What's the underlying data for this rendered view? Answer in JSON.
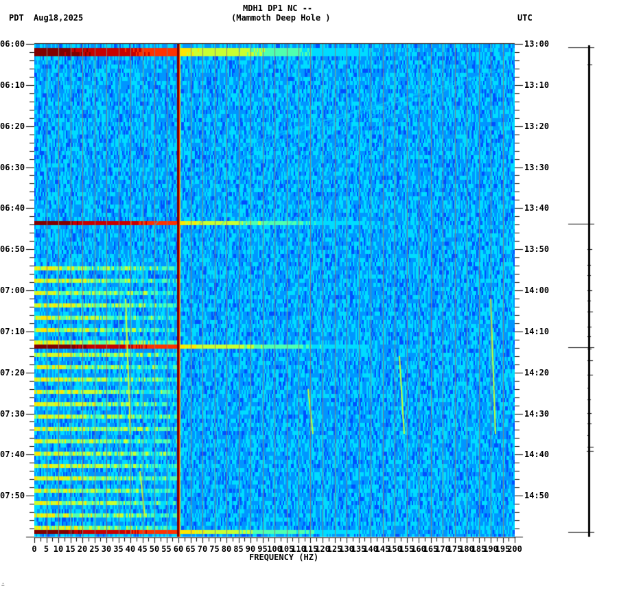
{
  "header": {
    "timezone_left": "PDT",
    "date": "Aug18,2025",
    "station_line1": "MDH1 DP1 NC --",
    "station_line2": "(Mammoth Deep Hole )",
    "timezone_right": "UTC"
  },
  "footer": {
    "corner_mark": "∴"
  },
  "colors": {
    "background": "#ffffff",
    "colormap": [
      "#0000c8",
      "#0050ff",
      "#0096ff",
      "#00dcff",
      "#50ffaf",
      "#c8ff32",
      "#ffe600",
      "#ff9600",
      "#ff3200",
      "#c80000",
      "#800000"
    ],
    "gridline": "#808080",
    "axis": "#000000"
  },
  "chart_data": {
    "type": "heatmap",
    "title": "MDH1 DP1 NC -- (Mammoth Deep Hole )",
    "subtitle": "Aug18,2025",
    "xlabel": "FREQUENCY (HZ)",
    "ylabel_left": "PDT",
    "ylabel_right": "UTC",
    "xlim": [
      0,
      200
    ],
    "x_ticks": [
      0,
      5,
      10,
      15,
      20,
      25,
      30,
      35,
      40,
      45,
      50,
      55,
      60,
      65,
      70,
      75,
      80,
      85,
      90,
      95,
      100,
      105,
      110,
      115,
      120,
      125,
      130,
      135,
      140,
      145,
      150,
      155,
      160,
      165,
      170,
      175,
      180,
      185,
      190,
      195,
      200
    ],
    "y_ticks_left": [
      "06:00",
      "06:10",
      "06:20",
      "06:30",
      "06:40",
      "06:50",
      "07:00",
      "07:10",
      "07:20",
      "07:30",
      "07:40",
      "07:50"
    ],
    "y_ticks_right": [
      "13:00",
      "13:10",
      "13:20",
      "13:30",
      "13:40",
      "13:50",
      "14:00",
      "14:10",
      "14:20",
      "14:30",
      "14:40",
      "14:50"
    ],
    "time_range_minutes": 120,
    "minor_tick_minutes": 2,
    "grid": {
      "vertical_every_hz": 5,
      "horizontal": false
    },
    "features": {
      "persistent_line_hz": 60,
      "broadband_bursts_minutes": [
        1.5,
        43.5,
        73.5,
        118.5
      ],
      "low_freq_banding_start_minute": 52,
      "dispersive_chirps": [
        {
          "start_min": 62,
          "end_min": 95,
          "freq_hz": 38
        },
        {
          "start_min": 104,
          "end_min": 115,
          "freq_hz": 44
        },
        {
          "start_min": 84,
          "end_min": 95,
          "freq_hz": 114
        },
        {
          "start_min": 76,
          "end_min": 95,
          "freq_hz": 152
        },
        {
          "start_min": 62,
          "end_min": 95,
          "freq_hz": 190
        }
      ]
    },
    "trace_panel": {
      "description": "vertical seismogram trace with event markers",
      "long_markers_minutes": [
        0.5,
        43.5,
        73.5,
        118.5
      ]
    }
  }
}
